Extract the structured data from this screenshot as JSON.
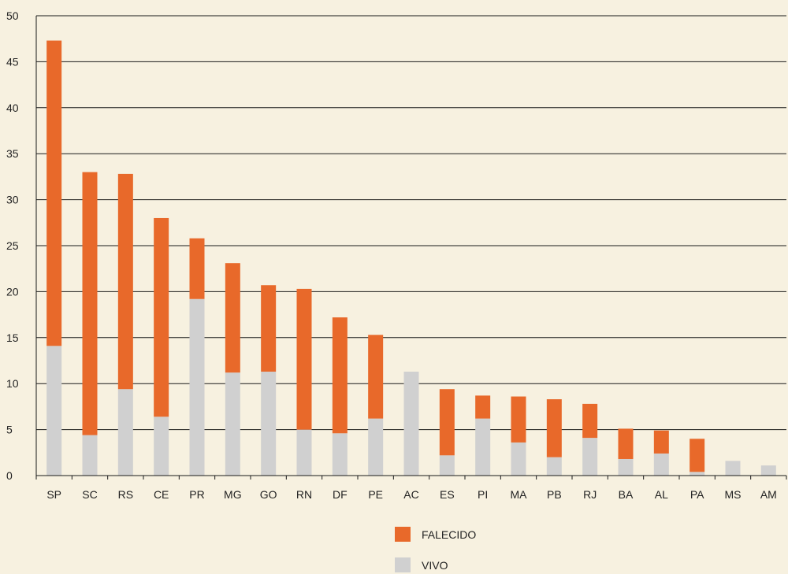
{
  "chart_data": {
    "type": "bar",
    "stacked": true,
    "categories": [
      "SP",
      "SC",
      "RS",
      "CE",
      "PR",
      "MG",
      "GO",
      "RN",
      "DF",
      "PE",
      "AC",
      "ES",
      "PI",
      "MA",
      "PB",
      "RJ",
      "BA",
      "AL",
      "PA",
      "MS",
      "AM"
    ],
    "series": [
      {
        "name": "VIVO",
        "color": "#d0d0d0",
        "values": [
          14.1,
          4.4,
          9.4,
          6.4,
          19.2,
          11.2,
          11.3,
          5.0,
          4.6,
          6.2,
          11.3,
          2.2,
          6.2,
          3.6,
          2.0,
          4.1,
          1.8,
          2.4,
          0.4,
          1.6,
          1.1
        ]
      },
      {
        "name": "FALECIDO",
        "color": "#e8692a",
        "values": [
          33.2,
          28.6,
          23.4,
          21.6,
          6.6,
          11.9,
          9.4,
          15.3,
          12.6,
          9.1,
          0.0,
          7.2,
          2.5,
          5.0,
          6.3,
          3.7,
          3.3,
          2.5,
          3.6,
          0.0,
          0.0
        ]
      }
    ],
    "ylim": [
      0,
      50
    ],
    "yticks": [
      0,
      5,
      10,
      15,
      20,
      25,
      30,
      35,
      40,
      45,
      50
    ],
    "grid": true,
    "legend_position": "bottom-center",
    "legend": [
      {
        "name": "FALECIDO",
        "color": "#e8692a"
      },
      {
        "name": "VIVO",
        "color": "#d0d0d0"
      }
    ],
    "title": "",
    "xlabel": "",
    "ylabel": ""
  }
}
